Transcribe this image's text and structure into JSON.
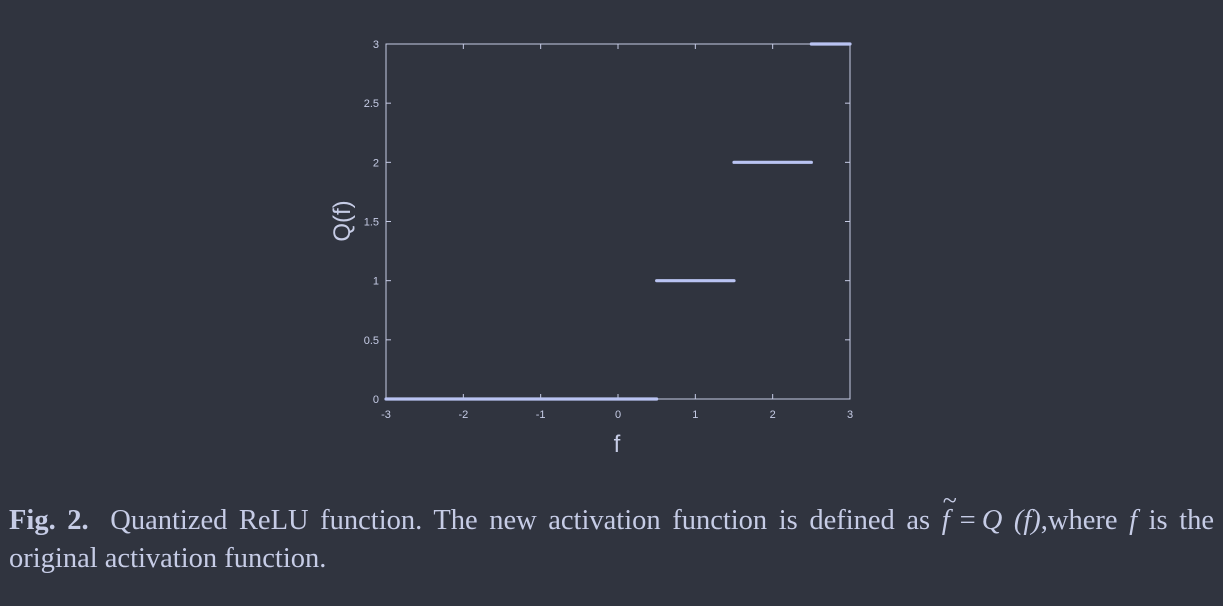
{
  "chart_data": {
    "type": "line",
    "xlabel": "f",
    "ylabel": "Q(f)",
    "xlim": [
      -3,
      3
    ],
    "ylim": [
      0,
      3
    ],
    "xticks": [
      "-3",
      "-2",
      "-1",
      "0",
      "1",
      "2",
      "3"
    ],
    "yticks": [
      "0",
      "0.5",
      "1",
      "1.5",
      "2",
      "2.5",
      "3"
    ],
    "grid": false,
    "segments": [
      {
        "x": [
          -3,
          0.5
        ],
        "y": [
          0,
          0
        ]
      },
      {
        "x": [
          0.5,
          1.5
        ],
        "y": [
          1,
          1
        ]
      },
      {
        "x": [
          1.5,
          2.5
        ],
        "y": [
          2,
          2
        ]
      },
      {
        "x": [
          2.5,
          3
        ],
        "y": [
          3,
          3
        ]
      }
    ],
    "colors": {
      "line": "#b9c3f2",
      "axis": "#c6cce6"
    }
  },
  "caption": {
    "lead": "Fig. 2.",
    "text1": "Quantized ReLU function. The new activation function is defined as",
    "ftilde": "f",
    "eq": "=",
    "q": "Q",
    "paren": " (f)",
    "text2": ",where",
    "f": "f",
    "text3": "is the original activation function."
  }
}
